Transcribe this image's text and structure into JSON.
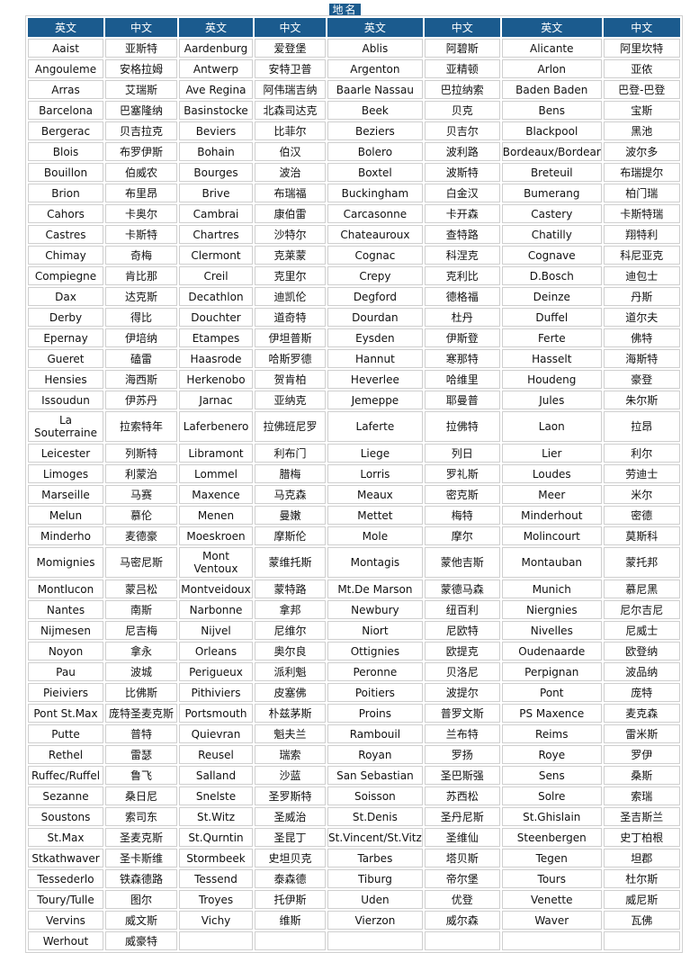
{
  "title": "地名",
  "headers": [
    "英文",
    "中文",
    "英文",
    "中文",
    "英文",
    "中文",
    "英文",
    "中文"
  ],
  "colors": {
    "header_bg": "#1b5b8e",
    "border": "#cfcfcf"
  },
  "rows": [
    [
      "Aaist",
      "亚斯特",
      "Aardenburg",
      "爱登堡",
      "Ablis",
      "阿碧斯",
      "Alicante",
      "阿里坎特"
    ],
    [
      "Angouleme",
      "安格拉姆",
      "Antwerp",
      "安特卫普",
      "Argenton",
      "亚精顿",
      "Arlon",
      "亚侬"
    ],
    [
      "Arras",
      "艾瑞斯",
      "Ave Regina",
      "阿伟瑞吉纳",
      "Baarle Nassau",
      "巴拉纳索",
      "Baden Baden",
      "巴登-巴登"
    ],
    [
      "Barcelona",
      "巴塞隆纳",
      "Basinstocke",
      "北森司达克",
      "Beek",
      "贝克",
      "Bens",
      "宝斯"
    ],
    [
      "Bergerac",
      "贝吉拉克",
      "Beviers",
      "比菲尔",
      "Beziers",
      "贝吉尔",
      "Blackpool",
      "黑池"
    ],
    [
      "Blois",
      "布罗伊斯",
      "Bohain",
      "伯汉",
      "Bolero",
      "波利路",
      "Bordeaux/Bordear",
      "波尔多"
    ],
    [
      "Bouillon",
      "伯威农",
      "Bourges",
      "波治",
      "Boxtel",
      "波斯特",
      "Breteuil",
      "布瑞提尔"
    ],
    [
      "Brion",
      "布里昂",
      "Brive",
      "布瑞福",
      "Buckingham",
      "白金汉",
      "Bumerang",
      "柏门瑞"
    ],
    [
      "Cahors",
      "卡奥尔",
      "Cambrai",
      "康伯雷",
      "Carcasonne",
      "卡开森",
      "Castery",
      "卡斯特瑞"
    ],
    [
      "Castres",
      "卡斯特",
      "Chartres",
      "沙特尔",
      "Chateauroux",
      "查特路",
      "Chatilly",
      "翔特利"
    ],
    [
      "Chimay",
      "奇梅",
      "Clermont",
      "克莱蒙",
      "Cognac",
      "科涅克",
      "Cognave",
      "科尼亚克"
    ],
    [
      "Compiegne",
      "肯比那",
      "Creil",
      "克里尔",
      "Crepy",
      "克利比",
      "D.Bosch",
      "迪包士"
    ],
    [
      "Dax",
      "达克斯",
      "Decathlon",
      "迪凯伦",
      "Degford",
      "德格福",
      "Deinze",
      "丹斯"
    ],
    [
      "Derby",
      "得比",
      "Douchter",
      "道奇特",
      "Dourdan",
      "杜丹",
      "Duffel",
      "道尔夫"
    ],
    [
      "Epernay",
      "伊培纳",
      "Etampes",
      "伊坦普斯",
      "Eysden",
      "伊斯登",
      "Ferte",
      "佛特"
    ],
    [
      "Gueret",
      "磕雷",
      "Haasrode",
      "哈斯罗德",
      "Hannut",
      "寒那特",
      "Hasselt",
      "海斯特"
    ],
    [
      "Hensies",
      "海西斯",
      "Herkenobo",
      "贺肯柏",
      "Heverlee",
      "哈维里",
      "Houdeng",
      "豪登"
    ],
    [
      "Issoudun",
      "伊苏丹",
      "Jarnac",
      "亚纳克",
      "Jemeppe",
      "耶曼普",
      "Jules",
      "朱尔斯"
    ],
    [
      "La Souterraine",
      "拉索特年",
      "Laferbenero",
      "拉佛班尼罗",
      "Laferte",
      "拉佛特",
      "Laon",
      "拉昂"
    ],
    [
      "Leicester",
      "列斯特",
      "Libramont",
      "利布门",
      "Liege",
      "列日",
      "Lier",
      "利尔"
    ],
    [
      "Limoges",
      "利蒙治",
      "Lommel",
      "腊梅",
      "Lorris",
      "罗礼斯",
      "Loudes",
      "劳迪士"
    ],
    [
      "Marseille",
      "马赛",
      "Maxence",
      "马克森",
      "Meaux",
      "密克斯",
      "Meer",
      "米尔"
    ],
    [
      "Melun",
      "慕伦",
      "Menen",
      "曼嫩",
      "Mettet",
      "梅特",
      "Minderhout",
      "密德"
    ],
    [
      "Minderho",
      "麦德豪",
      "Moeskroen",
      "摩斯伦",
      "Mole",
      "摩尔",
      "Molincourt",
      "莫斯科"
    ],
    [
      "Momignies",
      "马密尼斯",
      "Mont Ventoux",
      "蒙维托斯",
      "Montagis",
      "蒙他吉斯",
      "Montauban",
      "蒙托邦"
    ],
    [
      "Montlucon",
      "蒙吕松",
      "Montveidoux",
      "蒙特路",
      "Mt.De Marson",
      "蒙德马森",
      "Munich",
      "慕尼黑"
    ],
    [
      "Nantes",
      "南斯",
      "Narbonne",
      "拿邦",
      "Newbury",
      "纽百利",
      "Niergnies",
      "尼尔吉尼"
    ],
    [
      "Nijmesen",
      "尼吉梅",
      "Nijvel",
      "尼维尔",
      "Niort",
      "尼欧特",
      "Nivelles",
      "尼威士"
    ],
    [
      "Noyon",
      "拿永",
      "Orleans",
      "奥尔良",
      "Ottignies",
      "欧提克",
      "Oudenaarde",
      "欧登纳"
    ],
    [
      "Pau",
      "波城",
      "Perigueux",
      "派利魁",
      "Peronne",
      "贝洛尼",
      "Perpignan",
      "波品纳"
    ],
    [
      "Pieiviers",
      "比佛斯",
      "Pithiviers",
      "皮塞佛",
      "Poitiers",
      "波提尔",
      "Pont",
      "庞特"
    ],
    [
      "Pont St.Max",
      "庞特圣麦克斯",
      "Portsmouth",
      "朴兹茅斯",
      "Proins",
      "普罗文斯",
      "PS Maxence",
      "麦克森"
    ],
    [
      "Putte",
      "普特",
      "Quievran",
      "魁夫兰",
      "Rambouil",
      "兰布特",
      "Reims",
      "雷米斯"
    ],
    [
      "Rethel",
      "雷瑟",
      "Reusel",
      "瑞索",
      "Royan",
      "罗扬",
      "Roye",
      "罗伊"
    ],
    [
      "Ruffec/Ruffel",
      "鲁飞",
      "Salland",
      "沙蓝",
      "San Sebastian",
      "圣巴斯强",
      "Sens",
      "桑斯"
    ],
    [
      "Sezanne",
      "桑日尼",
      "Snelste",
      "圣罗斯特",
      "Soisson",
      "苏西松",
      "Solre",
      "索瑞"
    ],
    [
      "Soustons",
      "索司东",
      "St.Witz",
      "圣威治",
      "St.Denis",
      "圣丹尼斯",
      "St.Ghislain",
      "圣吉斯兰"
    ],
    [
      "St.Max",
      "圣麦克斯",
      "St.Qurntin",
      "圣昆丁",
      "St.Vincent/St.Vitz",
      "圣维仙",
      "Steenbergen",
      "史丁柏根"
    ],
    [
      "Stkathwaver",
      "圣卡斯维",
      "Stormbeek",
      "史坦贝克",
      "Tarbes",
      "塔贝斯",
      "Tegen",
      "坦郡"
    ],
    [
      "Tessederlo",
      "铁森德路",
      "Tessend",
      "泰森德",
      "Tiburg",
      "帝尔堡",
      "Tours",
      "杜尔斯"
    ],
    [
      "Toury/Tulle",
      "图尔",
      "Troyes",
      "托伊斯",
      "Uden",
      "优登",
      "Venette",
      "威尼斯"
    ],
    [
      "Vervins",
      "威文斯",
      "Vichy",
      "维斯",
      "Vierzon",
      "威尔森",
      "Waver",
      "瓦佛"
    ],
    [
      "Werhout",
      "威豪特",
      "",
      "",
      "",
      "",
      "",
      ""
    ]
  ]
}
